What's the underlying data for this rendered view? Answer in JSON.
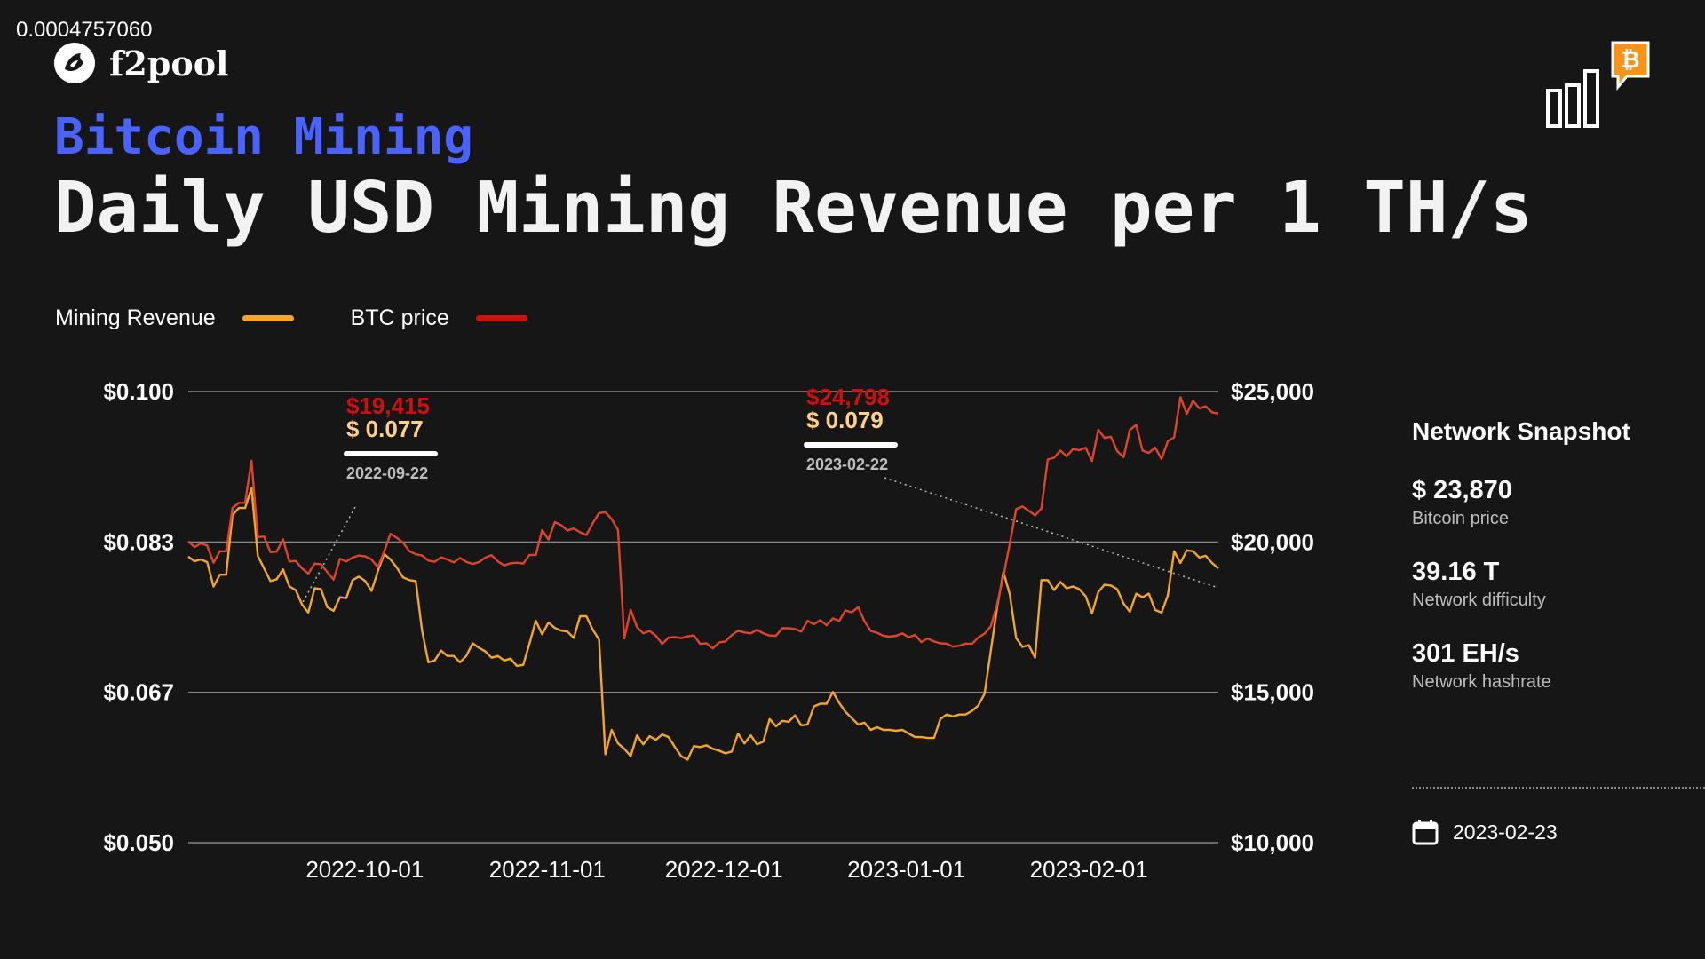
{
  "corner_number": "0.0004757060",
  "brand": {
    "name": "f2pool",
    "logo_icon": "fish-icon"
  },
  "header": {
    "kicker": "Bitcoin Mining",
    "title": "Daily USD Mining Revenue per 1 TH/s"
  },
  "badge": {
    "icon": "bitcoin-chart-badge-icon",
    "accent": "#f7931a"
  },
  "legend": [
    {
      "label": "Mining Revenue",
      "color": "#f4a62a"
    },
    {
      "label": "BTC price",
      "color": "#cc1111"
    }
  ],
  "snapshot": {
    "title": "Network Snapshot",
    "stats": [
      {
        "value": "$ 23,870",
        "label": "Bitcoin price"
      },
      {
        "value": "39.16 T",
        "label": "Network difficulty"
      },
      {
        "value": "301 EH/s",
        "label": "Network hashrate"
      }
    ],
    "date_icon": "calendar-icon",
    "date": "2023-02-23"
  },
  "chart_data": {
    "type": "line",
    "x_ticks": [
      "2022-10-01",
      "2022-11-01",
      "2022-12-01",
      "2023-01-01",
      "2023-02-01"
    ],
    "y_left": {
      "range": [
        0.05,
        0.1
      ],
      "ticks": [
        "$0.100",
        "$0.083",
        "$0.067",
        "$0.050"
      ]
    },
    "y_right": {
      "range": [
        10000,
        25000
      ],
      "ticks": [
        "$25,000",
        "$20,000",
        "$15,000",
        "$10,000"
      ]
    },
    "grid": true,
    "legend_position": "top-left",
    "x_start": "2022-09-01",
    "x_end": "2023-02-23",
    "series": [
      {
        "name": "Mining Revenue",
        "axis": "left",
        "color": "#f4a62a",
        "values": [
          0.0817,
          0.0812,
          0.0814,
          0.0811,
          0.0784,
          0.0797,
          0.0797,
          0.0863,
          0.0871,
          0.0871,
          0.0893,
          0.0818,
          0.0804,
          0.079,
          0.0792,
          0.0803,
          0.0784,
          0.078,
          0.0764,
          0.0755,
          0.0782,
          0.0781,
          0.0761,
          0.0757,
          0.0772,
          0.0771,
          0.0791,
          0.0795,
          0.079,
          0.0779,
          0.0801,
          0.082,
          0.0814,
          0.0805,
          0.0794,
          0.0791,
          0.079,
          0.0735,
          0.07,
          0.0702,
          0.0713,
          0.0707,
          0.0707,
          0.07,
          0.0707,
          0.0721,
          0.0716,
          0.0712,
          0.0705,
          0.0707,
          0.0702,
          0.0704,
          0.0696,
          0.0697,
          0.0721,
          0.0746,
          0.0731,
          0.0744,
          0.0738,
          0.0735,
          0.0734,
          0.0727,
          0.0751,
          0.0751,
          0.0736,
          0.0725,
          0.0598,
          0.0625,
          0.061,
          0.0604,
          0.0596,
          0.0619,
          0.0609,
          0.0618,
          0.0614,
          0.062,
          0.0617,
          0.0606,
          0.0596,
          0.0592,
          0.0607,
          0.0606,
          0.0608,
          0.0604,
          0.0602,
          0.0599,
          0.0601,
          0.0621,
          0.061,
          0.0619,
          0.0609,
          0.0612,
          0.0637,
          0.0629,
          0.0635,
          0.0634,
          0.0641,
          0.063,
          0.0631,
          0.0651,
          0.0654,
          0.0654,
          0.0667,
          0.0655,
          0.0645,
          0.0638,
          0.0631,
          0.0633,
          0.0625,
          0.0628,
          0.0625,
          0.0625,
          0.0624,
          0.0625,
          0.0621,
          0.0617,
          0.0617,
          0.0616,
          0.0616,
          0.0637,
          0.0642,
          0.064,
          0.0642,
          0.0642,
          0.0646,
          0.0652,
          0.0665,
          0.0713,
          0.0761,
          0.08,
          0.0775,
          0.0727,
          0.0717,
          0.0719,
          0.0705,
          0.0791,
          0.0791,
          0.078,
          0.0789,
          0.0782,
          0.0784,
          0.0781,
          0.0773,
          0.0754,
          0.0778,
          0.0786,
          0.0785,
          0.0781,
          0.0765,
          0.0756,
          0.0776,
          0.0772,
          0.0776,
          0.0758,
          0.0755,
          0.0774,
          0.0823,
          0.081,
          0.0824,
          0.0823,
          0.0816,
          0.0818,
          0.081,
          0.0804
        ]
      },
      {
        "name": "BTC price",
        "axis": "right",
        "color": "#cc1111",
        "values": [
          20020,
          19832,
          19950,
          19880,
          19310,
          19690,
          19690,
          21130,
          21300,
          21300,
          22700,
          20160,
          20180,
          19660,
          19680,
          20090,
          19350,
          19370,
          19120,
          18950,
          19280,
          19260,
          19000,
          18750,
          19440,
          19350,
          19480,
          19550,
          19520,
          19420,
          19160,
          19680,
          20270,
          20140,
          19970,
          19690,
          19590,
          19550,
          19380,
          19340,
          19490,
          19420,
          19320,
          19470,
          19340,
          19270,
          19330,
          19480,
          19560,
          19350,
          19220,
          19290,
          19310,
          19280,
          19570,
          19570,
          20390,
          20080,
          20660,
          20560,
          20380,
          20450,
          20320,
          20230,
          20620,
          20960,
          20990,
          20760,
          20400,
          16790,
          17740,
          17170,
          16960,
          17040,
          16880,
          16610,
          16820,
          16840,
          16800,
          16860,
          16890,
          16610,
          16630,
          16460,
          16660,
          16690,
          16900,
          17050,
          16990,
          16960,
          17080,
          16960,
          16890,
          16880,
          17130,
          17130,
          17100,
          17020,
          17380,
          17260,
          17400,
          17230,
          17460,
          17370,
          17720,
          17660,
          17830,
          17360,
          17040,
          16980,
          16880,
          16850,
          16880,
          16960,
          16830,
          16910,
          16670,
          16790,
          16690,
          16630,
          16620,
          16520,
          16550,
          16620,
          16610,
          16820,
          16950,
          17200,
          17930,
          18870,
          19950,
          21090,
          21180,
          21040,
          20880,
          21110,
          22740,
          22800,
          23040,
          22850,
          23090,
          23050,
          23130,
          22690,
          23730,
          23460,
          23500,
          23020,
          22820,
          23730,
          23890,
          23040,
          22960,
          23140,
          22760,
          23350,
          23480,
          24810,
          24260,
          24690,
          24440,
          24510,
          24310,
          24270
        ]
      }
    ],
    "annotations": [
      {
        "date": "2022-09-22",
        "price": "$19,415",
        "revenue": "$ 0.077",
        "price_color": "#cc1111",
        "revenue_color": "#ffd08a"
      },
      {
        "date": "2023-02-22",
        "price": "$24,798",
        "revenue": "$ 0.079",
        "price_color": "#cc1111",
        "revenue_color": "#ffd08a"
      }
    ]
  }
}
